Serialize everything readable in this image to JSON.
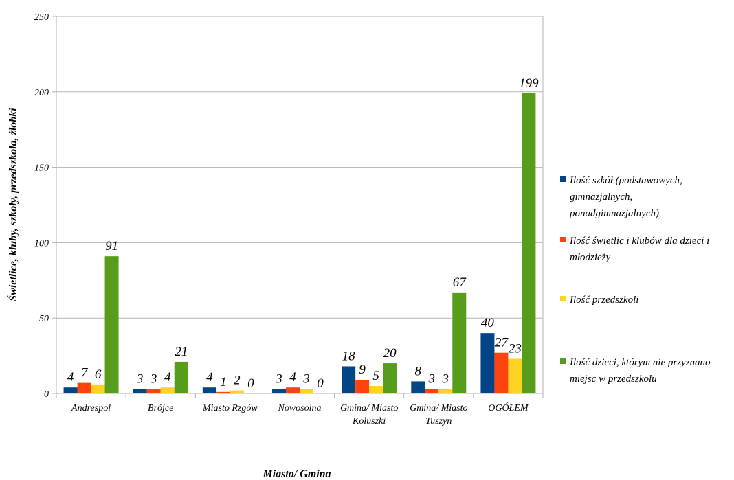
{
  "chart_data": {
    "type": "bar",
    "title": "",
    "xlabel": "Miasto/ Gmina",
    "ylabel": "Świetlice, kluby, szkoły, przedszkola, żłobki",
    "ylim": [
      0,
      250
    ],
    "yticks": [
      0,
      50,
      100,
      150,
      200,
      250
    ],
    "grid": true,
    "legend_position": "right",
    "categories": [
      [
        "Andrespol"
      ],
      [
        "Brójce"
      ],
      [
        "Miasto Rzgów"
      ],
      [
        "Nowosolna"
      ],
      [
        "Gmina/ Miasto",
        "Koluszki"
      ],
      [
        "Gmina/ Miasto",
        "Tuszyn"
      ],
      [
        "OGÓŁEM"
      ]
    ],
    "series": [
      {
        "name": "Ilość szkół (podstawowych, gimnazjalnych, ponadgimnazjalnych)",
        "legend_lines": [
          "Ilość szkół (podstawowych,",
          "gimnazjalnych,",
          "ponadgimnazjalnych)"
        ],
        "color": "#004586",
        "values": [
          4,
          3,
          4,
          3,
          18,
          8,
          40
        ]
      },
      {
        "name": "Ilość świetlic i klubów dla dzieci i młodzieży",
        "legend_lines": [
          "Ilość świetlic i klubów dla dzieci i",
          "młodzieży"
        ],
        "color": "#ff420e",
        "values": [
          7,
          3,
          1,
          4,
          9,
          3,
          27
        ]
      },
      {
        "name": "Ilość przedszkoli",
        "legend_lines": [
          "Ilość przedszkoli"
        ],
        "color": "#ffd320",
        "values": [
          6,
          4,
          2,
          3,
          5,
          3,
          23
        ]
      },
      {
        "name": "Ilość dzieci, którym nie przyznano miejsc w przedszkolu",
        "legend_lines": [
          "Ilość dzieci, którym nie przyznano",
          "miejsc w przedszkolu"
        ],
        "color": "#579d1c",
        "values": [
          91,
          21,
          0,
          0,
          20,
          67,
          199
        ]
      }
    ]
  }
}
